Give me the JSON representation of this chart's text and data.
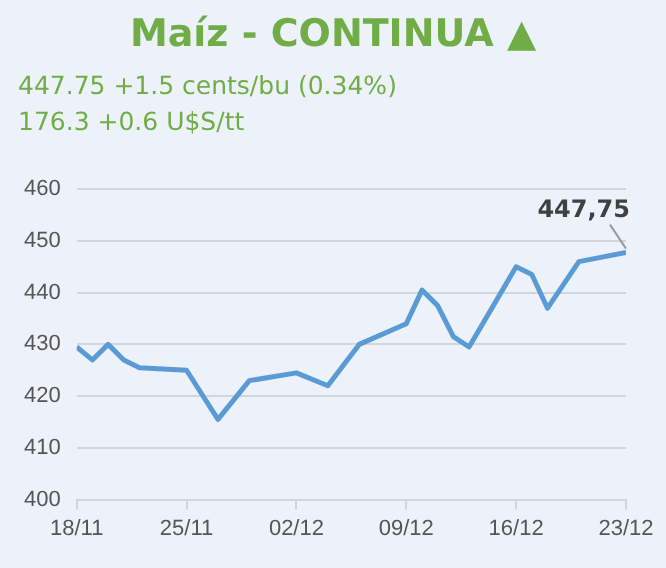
{
  "chart_data": {
    "type": "line",
    "title": "Maíz - CONTINUA ▲",
    "subtitle": "447.75 +1.5 cents/bu (0.34%)",
    "annotations": [
      "176.3 +0.6 U$S/tt",
      {
        "text": "447,75",
        "x": "--12-23",
        "y": 447.75
      }
    ],
    "x": [
      "--11-18",
      "--11-19",
      "--11-20",
      "--11-21",
      "--11-22",
      "--11-25",
      "--11-27",
      "--11-29",
      "--12-02",
      "--12-04",
      "--12-06",
      "--12-09",
      "--12-10",
      "--12-11",
      "--12-12",
      "--12-13",
      "--12-16",
      "--12-17",
      "--12-18",
      "--12-20",
      "--12-23"
    ],
    "series": [
      {
        "color": "#5b9bd5",
        "values": [
          429.5,
          427,
          430,
          427,
          425.5,
          425,
          415.5,
          423,
          424.5,
          422,
          430,
          434,
          440.5,
          437.5,
          431.5,
          429.5,
          445,
          443.5,
          437,
          446,
          447.75
        ]
      }
    ],
    "xlim": [
      "--11-18",
      "--12-23"
    ],
    "xticks": [
      {
        "value": "--11-18",
        "label": "18/11"
      },
      {
        "value": "--11-25",
        "label": "25/11"
      },
      {
        "value": "--12-02",
        "label": "02/12"
      },
      {
        "value": "--12-09",
        "label": "09/12"
      },
      {
        "value": "--12-16",
        "label": "16/12"
      },
      {
        "value": "--12-23",
        "label": "23/12"
      }
    ],
    "ylim": [
      400,
      460
    ],
    "yticks": [
      400,
      410,
      420,
      430,
      440,
      450,
      460
    ],
    "grid": "y",
    "legend": false,
    "marker": "none",
    "line_style": "solid"
  }
}
